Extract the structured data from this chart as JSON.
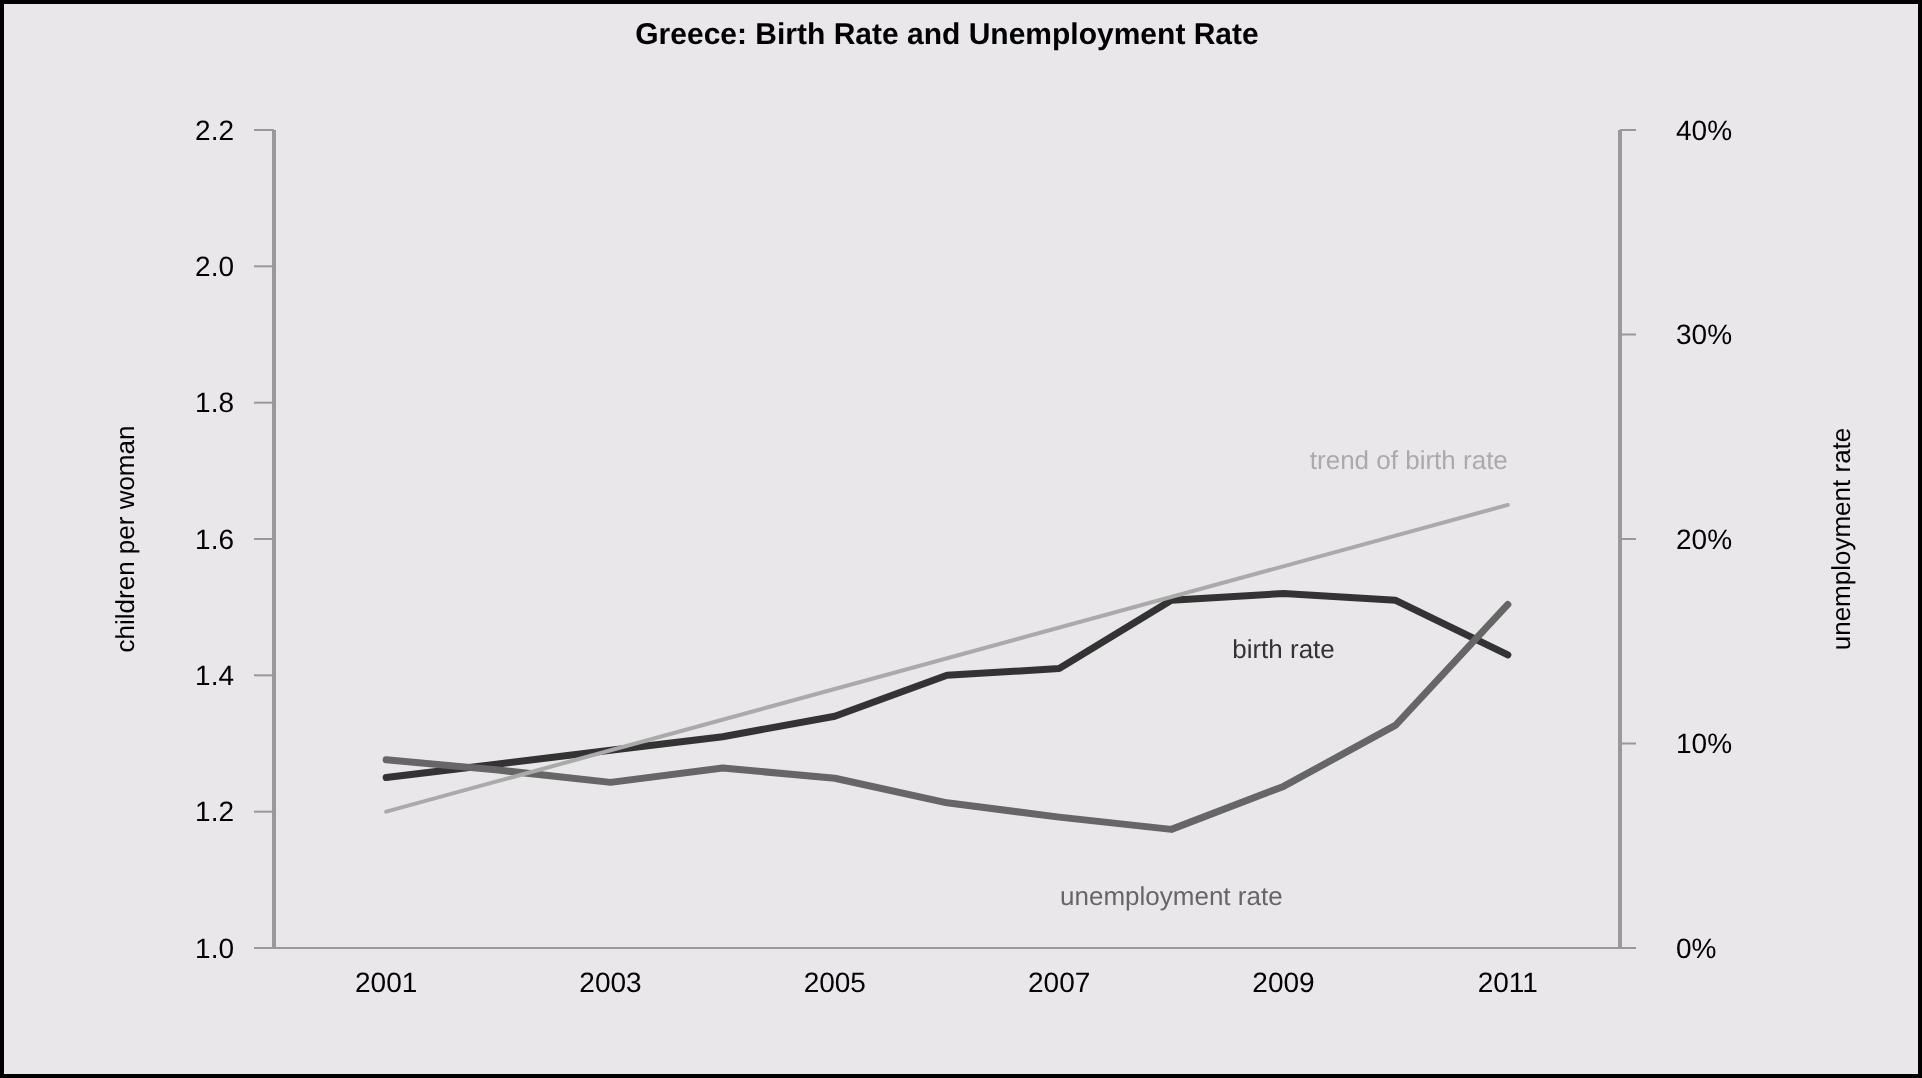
{
  "chart_data": {
    "type": "line",
    "title": "Greece: Birth Rate and Unemployment Rate",
    "ylabel": "children per woman",
    "y2label": "unemployment rate",
    "x": [
      2001,
      2002,
      2003,
      2004,
      2005,
      2006,
      2007,
      2008,
      2009,
      2010,
      2011
    ],
    "series": [
      {
        "name": "birth rate",
        "color": "#333333",
        "values": [
          1.25,
          1.27,
          1.29,
          1.31,
          1.34,
          1.4,
          1.41,
          1.51,
          1.52,
          1.51,
          1.43
        ]
      },
      {
        "name": "unemployment rate",
        "color": "#666666",
        "axis": "y2",
        "values": [
          9.2,
          8.7,
          8.1,
          8.8,
          8.3,
          7.1,
          6.4,
          5.8,
          7.9,
          10.9,
          16.8
        ]
      },
      {
        "name": "trend of birth rate",
        "color": "#aaaaaa",
        "x": [
          2001,
          2011
        ],
        "values": [
          1.2,
          1.65
        ]
      }
    ],
    "xlim": [
      2000,
      2012
    ],
    "xticks": [
      2001,
      2003,
      2005,
      2007,
      2009,
      2011
    ],
    "ylim": [
      1.0,
      2.2
    ],
    "yticks": [
      {
        "value": 1,
        "label": "1.0"
      },
      1.2,
      1.4,
      1.6,
      1.8,
      {
        "value": 2,
        "label": "2.0"
      },
      2.2
    ],
    "y2lim": [
      0,
      40
    ],
    "y2ticks": [
      {
        "value": 0,
        "label": "0%"
      },
      {
        "value": 10,
        "label": "10%"
      },
      {
        "value": 20,
        "label": "20%"
      },
      {
        "value": 30,
        "label": "30%"
      },
      {
        "value": 40,
        "label": "40%"
      }
    ],
    "grid": false
  }
}
